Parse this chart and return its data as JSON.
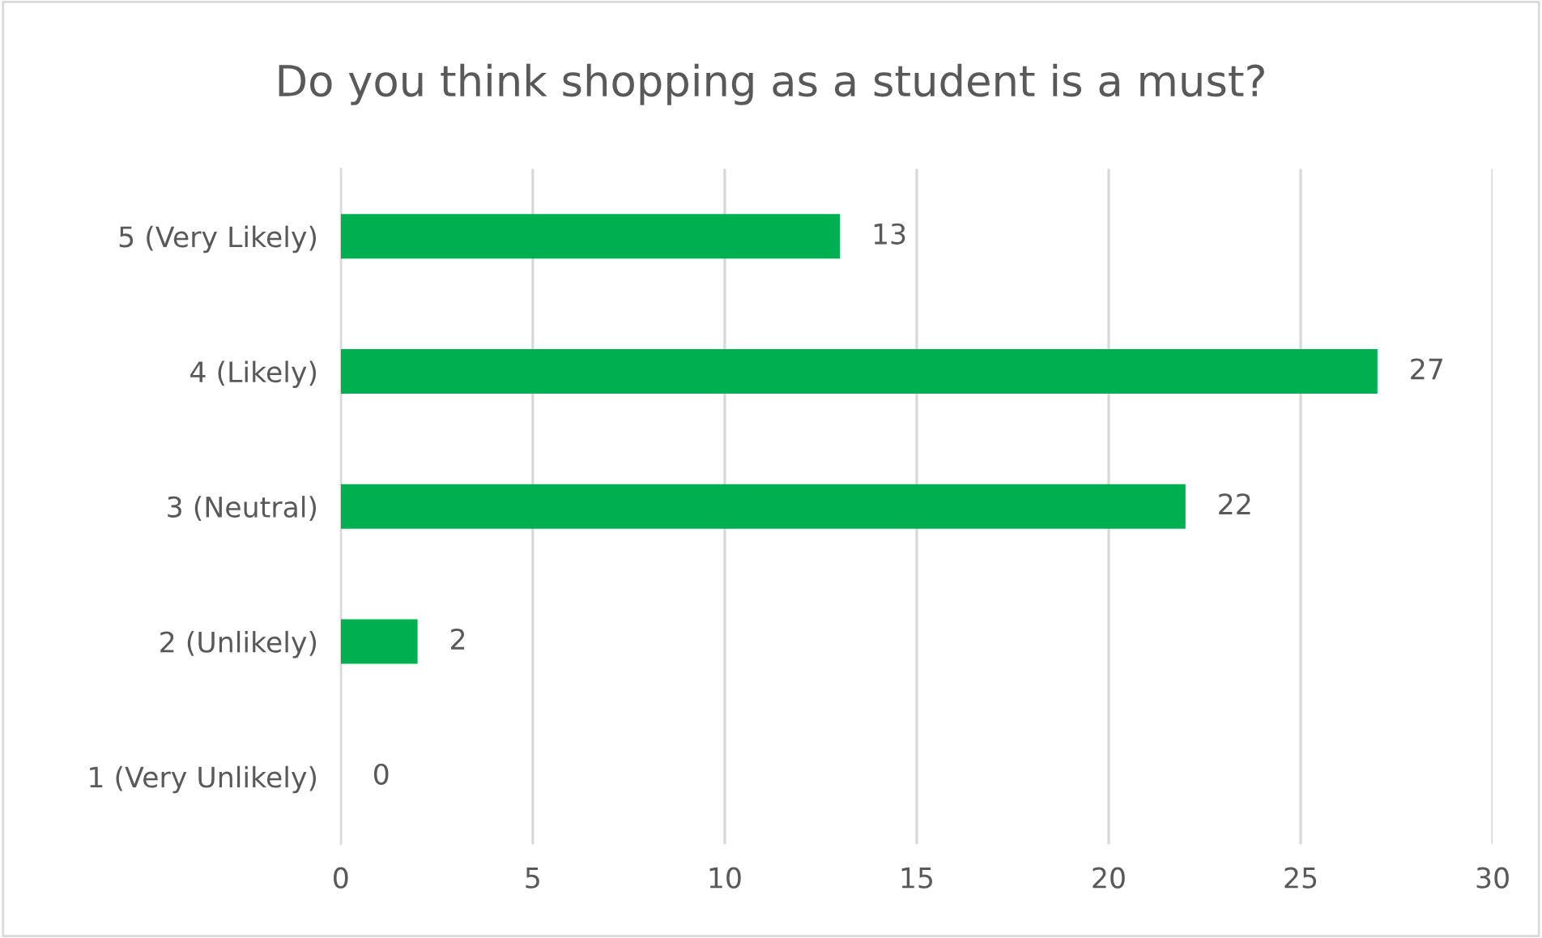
{
  "chart_data": {
    "type": "bar",
    "orientation": "horizontal",
    "title": "Do you think shopping as a student is a must?",
    "categories": [
      "5 (Very Likely)",
      "4 (Likely)",
      "3 (Neutral)",
      "2 (Unlikely)",
      "1 (Very Unlikely)"
    ],
    "values": [
      13,
      27,
      22,
      2,
      0
    ],
    "color": "#00b050",
    "xlim": [
      0,
      30
    ],
    "xticks": [
      0,
      5,
      10,
      15,
      20,
      25,
      30
    ],
    "grid": "x",
    "data_labels": true,
    "legend": false
  }
}
